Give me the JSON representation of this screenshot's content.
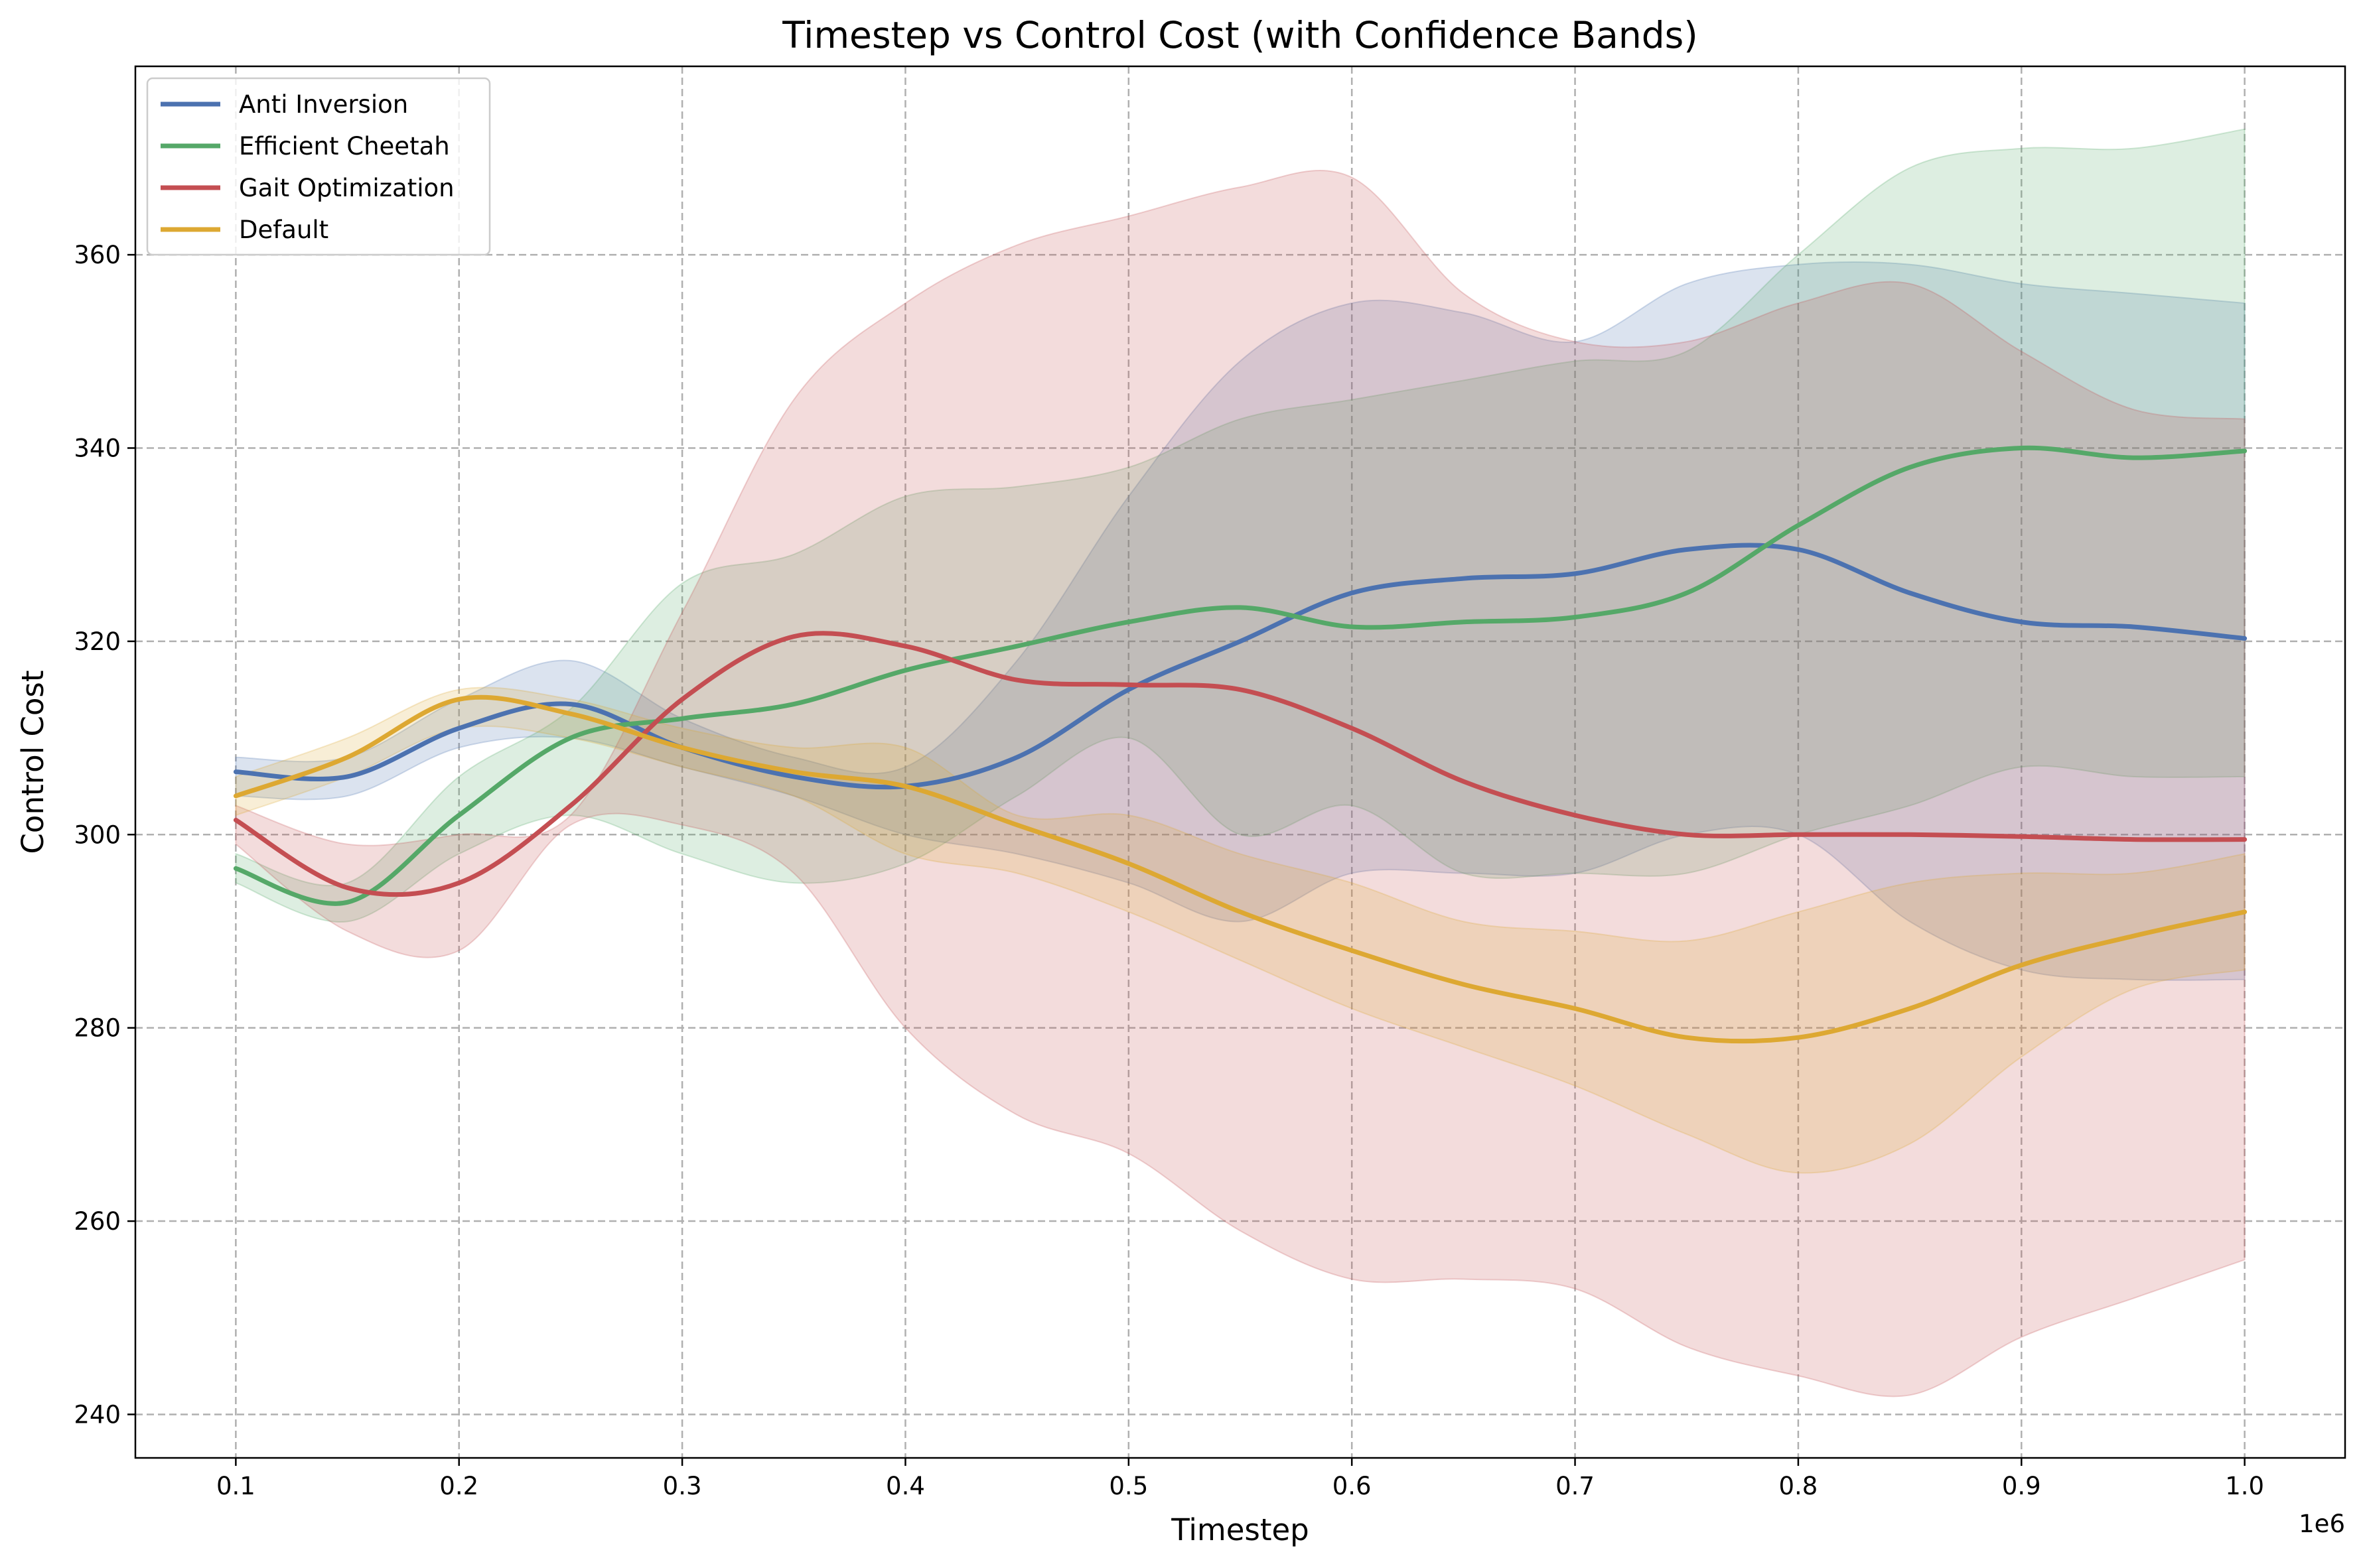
{
  "chart_data": {
    "type": "line",
    "title": "Timestep vs Control Cost (with Confidence Bands)",
    "xlabel": "Timestep",
    "ylabel": "Control Cost",
    "x_offset_label": "1e6",
    "xlim": [
      0.055,
      1.045
    ],
    "ylim": [
      235.5,
      379.5
    ],
    "x_ticks": [
      0.1,
      0.2,
      0.3,
      0.4,
      0.5,
      0.6,
      0.7,
      0.8,
      0.9,
      1.0
    ],
    "x_tick_labels": [
      "0.1",
      "0.2",
      "0.3",
      "0.4",
      "0.5",
      "0.6",
      "0.7",
      "0.8",
      "0.9",
      "1.0"
    ],
    "y_ticks": [
      240,
      260,
      280,
      300,
      320,
      340,
      360
    ],
    "y_tick_labels": [
      "240",
      "260",
      "280",
      "300",
      "320",
      "340",
      "360"
    ],
    "grid": true,
    "legend_position": "upper-left",
    "x": [
      0.1,
      0.15,
      0.2,
      0.25,
      0.3,
      0.35,
      0.4,
      0.45,
      0.5,
      0.55,
      0.6,
      0.65,
      0.7,
      0.75,
      0.8,
      0.85,
      0.9,
      0.95,
      1.0
    ],
    "series": [
      {
        "name": "Anti Inversion",
        "color": "#4c72b0",
        "values": [
          306.5,
          306,
          311,
          313.5,
          309,
          306,
          305,
          308,
          315,
          320,
          325,
          326.5,
          327,
          329.5,
          329.5,
          325,
          322,
          321.5,
          320.3
        ],
        "lower": [
          304,
          304,
          309,
          310,
          307,
          304,
          300,
          298,
          295,
          291,
          296,
          296,
          296,
          300,
          300,
          291,
          286,
          285,
          285
        ],
        "upper": [
          308,
          308,
          314,
          318,
          312,
          308,
          307,
          318,
          335,
          349,
          355,
          354,
          351,
          357,
          359,
          359,
          357,
          356,
          355
        ]
      },
      {
        "name": "Efficient Cheetah",
        "color": "#55a868",
        "values": [
          296.5,
          293,
          302,
          310,
          312,
          313.5,
          317,
          319.5,
          322,
          323.5,
          321.5,
          322,
          322.5,
          325,
          332,
          338,
          340,
          339,
          339.7
        ],
        "lower": [
          295,
          291,
          298,
          302,
          298,
          295,
          297,
          304,
          310,
          300,
          303,
          296,
          296,
          296,
          300,
          303,
          307,
          306,
          306
        ],
        "upper": [
          298,
          295,
          306,
          313,
          326,
          329,
          335,
          336,
          338,
          343,
          345,
          347,
          349,
          350,
          360,
          369,
          371,
          371,
          373
        ]
      },
      {
        "name": "Gait Optimization",
        "color": "#c44e52",
        "values": [
          301.5,
          294.5,
          295,
          303,
          314,
          320.5,
          319.5,
          316,
          315.5,
          315,
          311,
          305.5,
          302,
          300,
          300,
          300,
          299.8,
          299.5,
          299.5
        ],
        "lower": [
          299,
          290,
          288,
          301,
          301,
          296,
          280,
          271,
          267,
          259,
          254,
          254,
          253,
          247,
          244,
          242,
          248,
          252,
          256
        ],
        "upper": [
          303,
          299,
          300,
          302,
          323,
          345,
          355,
          361,
          364,
          367,
          368,
          356,
          351,
          351,
          355,
          357,
          350,
          344,
          343
        ]
      },
      {
        "name": "Default",
        "color": "#dda832",
        "values": [
          304,
          308,
          314,
          312.5,
          309,
          306.5,
          305,
          301,
          297,
          292,
          288,
          284.5,
          282,
          279,
          279,
          282,
          286.5,
          289.5,
          292
        ],
        "lower": [
          302,
          306,
          311,
          310,
          307,
          304,
          298,
          296,
          292,
          287,
          282,
          278,
          274,
          269,
          265,
          268,
          277,
          284,
          286
        ],
        "upper": [
          306,
          310,
          315,
          314,
          311,
          309,
          309,
          302,
          302,
          298,
          295,
          291,
          290,
          289,
          292,
          295,
          296,
          296,
          298
        ]
      }
    ]
  }
}
